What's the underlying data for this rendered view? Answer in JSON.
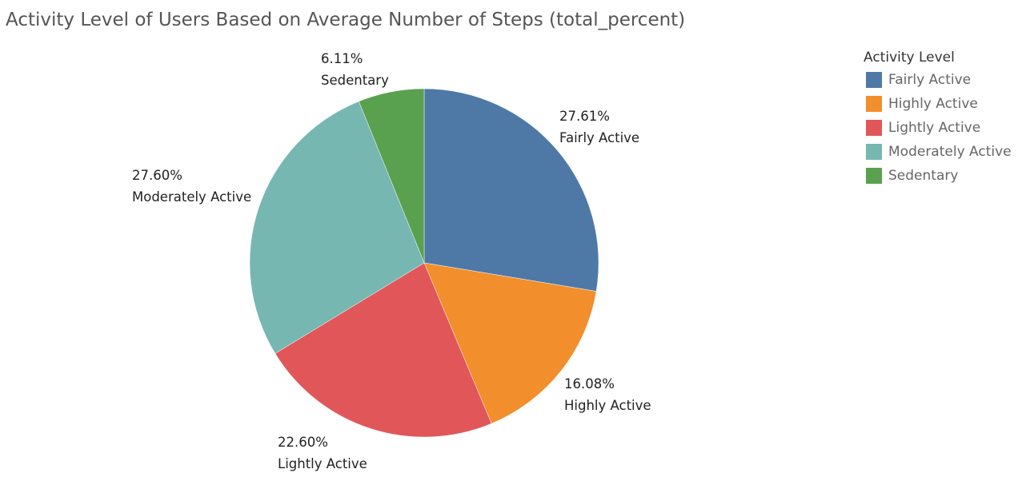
{
  "title": "Activity Level of Users Based on Average Number of Steps (total_percent)",
  "chart_data": {
    "type": "pie",
    "title": "Activity Level of Users Based on Average Number of Steps (total_percent)",
    "start_angle_deg": 0,
    "direction": "clockwise",
    "slices": [
      {
        "category": "Fairly Active",
        "value": 27.61,
        "label_pct": "27.61%",
        "color": "#4E79A7"
      },
      {
        "category": "Highly Active",
        "value": 16.08,
        "label_pct": "16.08%",
        "color": "#F28E2B"
      },
      {
        "category": "Lightly Active",
        "value": 22.6,
        "label_pct": "22.60%",
        "color": "#E15759"
      },
      {
        "category": "Moderately Active",
        "value": 27.6,
        "label_pct": "27.60%",
        "color": "#76B7B2"
      },
      {
        "category": "Sedentary",
        "value": 6.11,
        "label_pct": "6.11%",
        "color": "#59A14F"
      }
    ],
    "legend": {
      "title": "Activity Level",
      "position": "right",
      "items": [
        "Fairly Active",
        "Highly Active",
        "Lightly Active",
        "Moderately Active",
        "Sedentary"
      ]
    }
  }
}
